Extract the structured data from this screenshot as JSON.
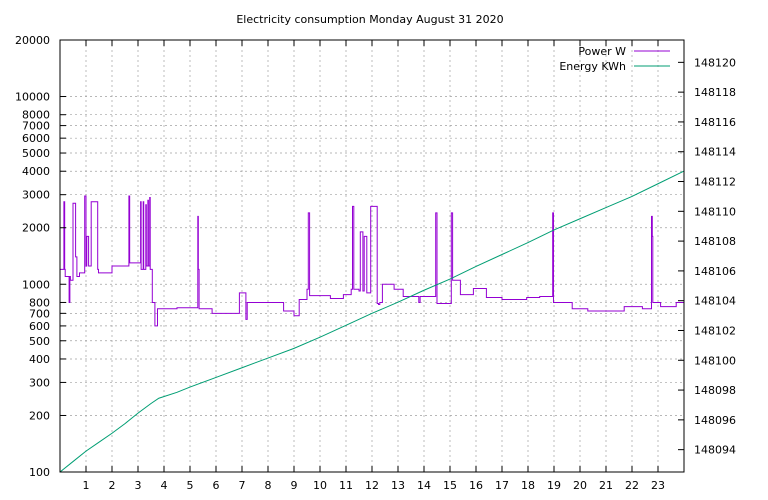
{
  "chart_data": {
    "type": "line",
    "title": "Electricity consumption Monday August 31 2020",
    "xlabel": "",
    "ylabel": "",
    "y2label": "",
    "x_range": [
      0,
      24
    ],
    "x_ticks": [
      1,
      2,
      3,
      4,
      5,
      6,
      7,
      8,
      9,
      10,
      11,
      12,
      13,
      14,
      15,
      16,
      17,
      18,
      19,
      20,
      21,
      22,
      23
    ],
    "y_scale": "log",
    "ylim": [
      100,
      20000
    ],
    "y_ticks": [
      100,
      200,
      300,
      400,
      500,
      600,
      700,
      800,
      1000,
      2000,
      3000,
      4000,
      5000,
      6000,
      7000,
      8000,
      10000,
      20000
    ],
    "y2lim": [
      148092.5,
      148121.5
    ],
    "y2_ticks": [
      148094,
      148096,
      148098,
      148100,
      148102,
      148104,
      148106,
      148108,
      148110,
      148112,
      148114,
      148116,
      148118,
      148120
    ],
    "grid": true,
    "legend_position": "top-right",
    "series": [
      {
        "name": "Power W",
        "axis": "y",
        "color": "#9400d3",
        "step": true,
        "x": [
          0,
          0.15,
          0.18,
          0.2,
          0.35,
          0.38,
          0.4,
          0.5,
          0.6,
          0.65,
          0.68,
          0.75,
          0.95,
          1.0,
          1.03,
          1.1,
          1.12,
          1.2,
          1.45,
          1.48,
          1.5,
          2.0,
          2.1,
          2.5,
          2.65,
          2.68,
          2.7,
          2.95,
          3.1,
          3.12,
          3.2,
          3.22,
          3.3,
          3.32,
          3.38,
          3.4,
          3.45,
          3.47,
          3.52,
          3.55,
          3.6,
          3.65,
          3.75,
          4.5,
          5.3,
          5.32,
          5.35,
          5.38,
          5.5,
          5.85,
          6.0,
          6.85,
          6.9,
          7.1,
          7.15,
          7.2,
          7.9,
          8.6,
          9.0,
          9.2,
          9.5,
          9.55,
          9.6,
          10.4,
          10.9,
          11.2,
          11.25,
          11.3,
          11.5,
          11.55,
          11.65,
          11.7,
          11.8,
          11.85,
          11.95,
          12.2,
          12.25,
          12.3,
          12.4,
          12.85,
          13.2,
          13.8,
          13.85,
          14.4,
          14.45,
          14.5,
          15.0,
          15.05,
          15.1,
          15.4,
          15.9,
          16.4,
          17.0,
          17.95,
          18.45,
          18.95,
          18.98,
          19.0,
          19.7,
          20.3,
          21.7,
          22.4,
          22.75,
          22.78,
          22.8,
          23.1,
          23.7,
          24.0
        ],
        "y": [
          1200,
          2750,
          1200,
          1100,
          800,
          1100,
          1050,
          2700,
          1400,
          1100,
          1100,
          1150,
          2950,
          1250,
          1800,
          1250,
          1250,
          2750,
          1200,
          1150,
          1150,
          1250,
          1250,
          1250,
          2950,
          1300,
          1300,
          1300,
          2750,
          1200,
          2750,
          1200,
          2650,
          1250,
          2800,
          1250,
          2900,
          1200,
          1200,
          800,
          800,
          600,
          740,
          750,
          2300,
          1200,
          740,
          740,
          740,
          700,
          700,
          700,
          900,
          900,
          650,
          800,
          800,
          720,
          680,
          830,
          940,
          2400,
          870,
          840,
          880,
          940,
          2600,
          940,
          920,
          1900,
          920,
          1800,
          900,
          900,
          2600,
          790,
          780,
          800,
          1000,
          940,
          860,
          800,
          860,
          860,
          2400,
          790,
          790,
          2400,
          1050,
          880,
          950,
          850,
          830,
          850,
          860,
          2400,
          800,
          800,
          740,
          720,
          760,
          740,
          2300,
          1800,
          800,
          760,
          800,
          820
        ]
      },
      {
        "name": "Energy KWh",
        "axis": "y2",
        "color": "#009e73",
        "step": false,
        "x": [
          0,
          0.5,
          1.0,
          1.5,
          2.0,
          2.5,
          3.0,
          3.5,
          3.8,
          4.5,
          5.0,
          6.0,
          7.0,
          8.0,
          9.0,
          10.0,
          11.0,
          12.0,
          13.0,
          14.0,
          15.0,
          16.0,
          17.0,
          18.0,
          19.0,
          20.0,
          21.0,
          22.0,
          23.0,
          24.0
        ],
        "y": [
          148092.5,
          148093.2,
          148093.9,
          148094.5,
          148095.1,
          148095.75,
          148096.45,
          148097.1,
          148097.45,
          148097.85,
          148098.2,
          148098.85,
          148099.5,
          148100.15,
          148100.8,
          148101.55,
          148102.35,
          148103.15,
          148103.9,
          148104.7,
          148105.45,
          148106.3,
          148107.1,
          148107.9,
          148108.75,
          148109.5,
          148110.25,
          148111.0,
          148111.85,
          148112.7
        ]
      }
    ]
  }
}
